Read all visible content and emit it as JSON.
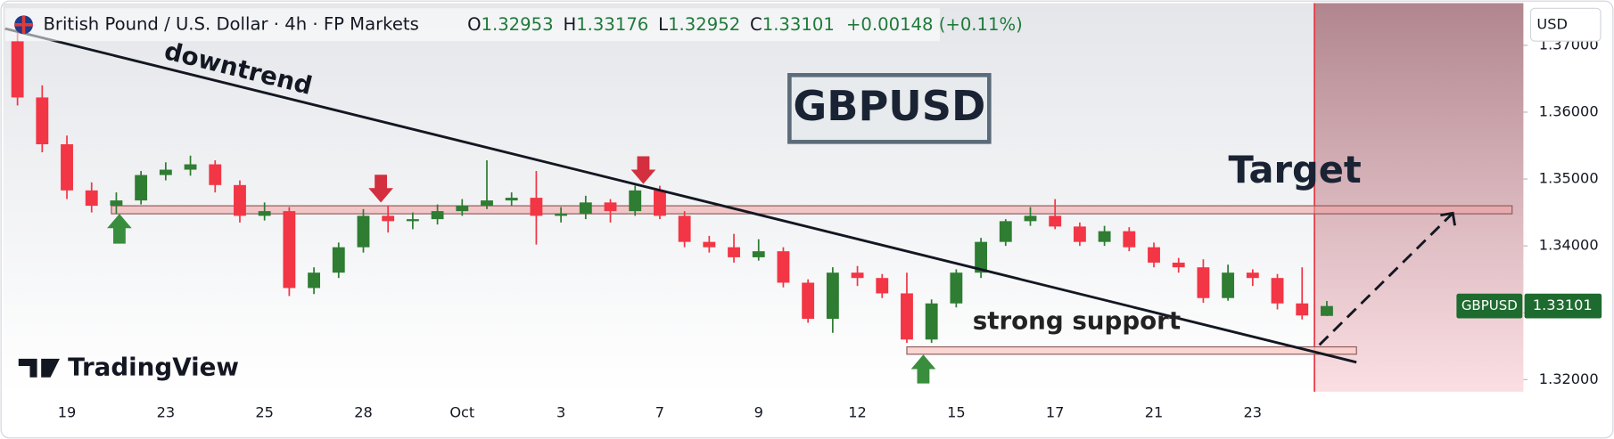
{
  "header": {
    "symbol": "British Pound / U.S. Dollar · 4h · FP Markets",
    "o": "O",
    "h": "H",
    "l": "L",
    "c": "C",
    "change": "+0.00148 (+0.11%)",
    "currency": "USD",
    "logo": "TradingView"
  },
  "chart_data": {
    "type": "candlestick",
    "title": "GBPUSD",
    "symbol_tag": "GBPUSD",
    "categories": [
      null,
      null,
      "19",
      null,
      null,
      null,
      "23",
      null,
      null,
      null,
      "25",
      null,
      null,
      null,
      "28",
      null,
      null,
      null,
      "Oct",
      null,
      null,
      null,
      "3",
      null,
      null,
      null,
      "7",
      null,
      null,
      null,
      "9",
      null,
      null,
      null,
      "12",
      null,
      null,
      null,
      "15",
      null,
      null,
      null,
      "17",
      null,
      null,
      null,
      "21",
      null,
      null,
      null,
      "23",
      null,
      null,
      null
    ],
    "open": [
      1.3706,
      1.3622,
      1.3552,
      1.3483,
      1.346,
      1.3468,
      1.3506,
      1.3514,
      1.3522,
      1.3491,
      1.3445,
      1.3452,
      1.3337,
      1.336,
      1.3398,
      1.3445,
      1.3437,
      1.344,
      1.3452,
      1.346,
      1.3468,
      1.3472,
      1.3445,
      1.3448,
      1.3465,
      1.3452,
      1.3483,
      1.3445,
      1.3406,
      1.3398,
      1.3383,
      1.3392,
      1.3345,
      1.3291,
      1.336,
      1.3352,
      1.3329,
      1.326,
      1.3314,
      1.336,
      1.3406,
      1.3437,
      1.3445,
      1.3429,
      1.3406,
      1.3422,
      1.3398,
      1.3375,
      1.3368,
      1.3322,
      1.336,
      1.3352,
      1.3314,
      1.32953
    ],
    "high": [
      1.372,
      1.364,
      1.3565,
      1.3495,
      1.348,
      1.3512,
      1.3525,
      1.3535,
      1.3528,
      1.3498,
      1.3465,
      1.3458,
      1.3368,
      1.3405,
      1.3455,
      1.346,
      1.345,
      1.3462,
      1.347,
      1.3528,
      1.348,
      1.3512,
      1.3458,
      1.3475,
      1.347,
      1.349,
      1.349,
      1.3452,
      1.3415,
      1.3418,
      1.341,
      1.3398,
      1.335,
      1.3368,
      1.337,
      1.3358,
      1.336,
      1.332,
      1.3365,
      1.3412,
      1.344,
      1.3458,
      1.347,
      1.3435,
      1.343,
      1.3428,
      1.3405,
      1.3382,
      1.338,
      1.3372,
      1.3365,
      1.3358,
      1.3368,
      1.33176
    ],
    "low": [
      1.361,
      1.354,
      1.347,
      1.345,
      1.3448,
      1.3462,
      1.3498,
      1.3505,
      1.348,
      1.3435,
      1.3438,
      1.3325,
      1.3328,
      1.3352,
      1.339,
      1.342,
      1.3425,
      1.3432,
      1.3445,
      1.3455,
      1.346,
      1.3402,
      1.3435,
      1.344,
      1.3435,
      1.3445,
      1.344,
      1.3398,
      1.339,
      1.3375,
      1.3378,
      1.3338,
      1.3285,
      1.327,
      1.334,
      1.3322,
      1.3255,
      1.3255,
      1.3308,
      1.3352,
      1.34,
      1.343,
      1.3425,
      1.34,
      1.34,
      1.3392,
      1.3368,
      1.336,
      1.3315,
      1.3318,
      1.334,
      1.3305,
      1.329,
      1.32952
    ],
    "close": [
      1.3622,
      1.3552,
      1.3483,
      1.346,
      1.3468,
      1.3506,
      1.3514,
      1.3522,
      1.3491,
      1.3445,
      1.3452,
      1.3337,
      1.336,
      1.3398,
      1.3445,
      1.3437,
      1.344,
      1.3452,
      1.346,
      1.3468,
      1.3472,
      1.3445,
      1.3448,
      1.3465,
      1.3452,
      1.3483,
      1.3445,
      1.3406,
      1.3398,
      1.3383,
      1.3392,
      1.3345,
      1.3291,
      1.336,
      1.3352,
      1.3329,
      1.326,
      1.3314,
      1.336,
      1.3406,
      1.3437,
      1.3445,
      1.3429,
      1.3406,
      1.3422,
      1.3398,
      1.3375,
      1.3368,
      1.3322,
      1.336,
      1.3352,
      1.3314,
      1.3296,
      1.33101
    ],
    "up_color": "#2e7d32",
    "down_color": "#f23645",
    "ylim": [
      1.3182,
      1.376
    ],
    "yticks": [
      {
        "value": 1.32,
        "label": "1.32000"
      },
      {
        "value": 1.33,
        "label": "1.33000"
      },
      {
        "value": 1.34,
        "label": "1.34000"
      },
      {
        "value": 1.35,
        "label": "1.35000"
      },
      {
        "value": 1.36,
        "label": "1.36000"
      },
      {
        "value": 1.37,
        "label": "1.37000"
      }
    ],
    "grid": false,
    "annotations": {
      "trendline": {
        "label": "downtrend",
        "start": {
          "index": -0.5,
          "price": 1.3725
        },
        "end": {
          "index": 54.2,
          "price": 1.3226
        }
      },
      "resistance_zone": {
        "from": 3.8,
        "to": 60.5,
        "low": 1.3448,
        "high": 1.346
      },
      "support_zone": {
        "label": "strong support",
        "from": 36.0,
        "to": 54.2,
        "low": 1.3238,
        "high": 1.3249
      },
      "target": {
        "label": "Target",
        "start": {
          "index": 52.7,
          "price": 1.3252
        },
        "end": {
          "index": 58.1,
          "price": 1.3449
        }
      },
      "now_line": 52.5
    }
  }
}
